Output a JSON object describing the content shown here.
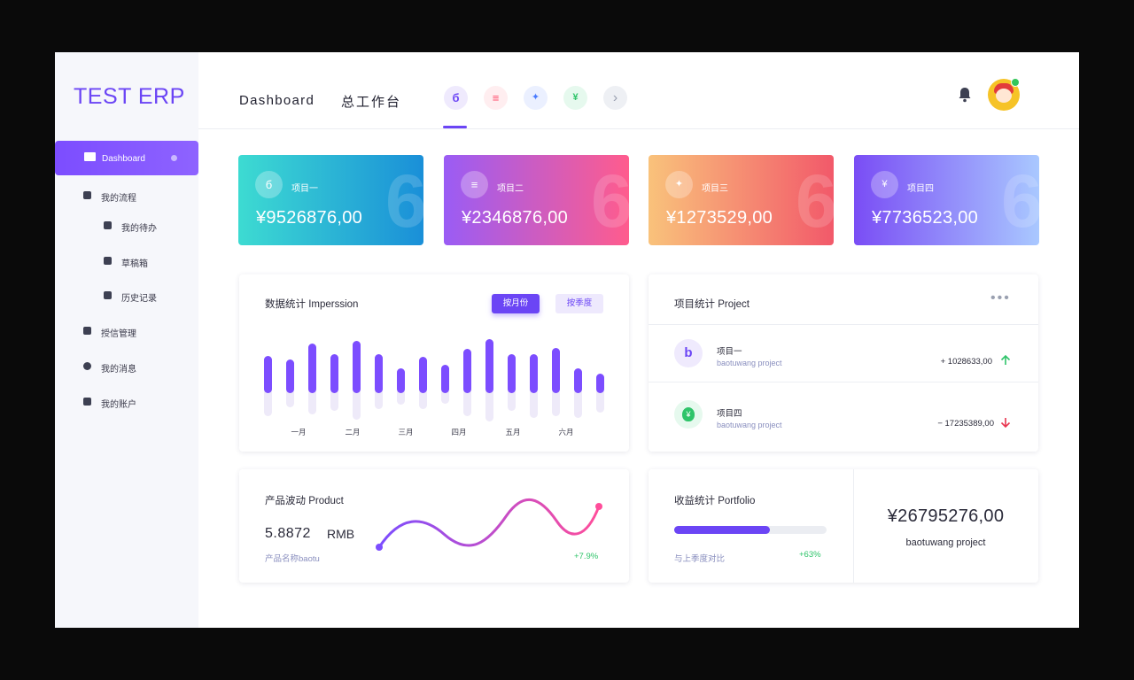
{
  "app": {
    "logo": "TEST ERP",
    "accent": "#6b45f5"
  },
  "sidebar": {
    "items": [
      {
        "label": "Dashboard",
        "icon": "monitor-icon",
        "active": true
      },
      {
        "label": "我的流程",
        "icon": "workflow-icon"
      },
      {
        "label": "我的待办",
        "icon": "calendar-icon",
        "sub": true
      },
      {
        "label": "草稿箱",
        "icon": "draft-icon",
        "sub": true
      },
      {
        "label": "历史记录",
        "icon": "history-icon",
        "sub": true
      },
      {
        "label": "授信管理",
        "icon": "credit-icon"
      },
      {
        "label": "我的消息",
        "icon": "message-icon"
      },
      {
        "label": "我的账户",
        "icon": "account-icon"
      }
    ]
  },
  "header": {
    "title_en": "Dashboard",
    "title_cn": "总工作台",
    "tabs": [
      {
        "icon": "logo-six-icon",
        "glyph": "б",
        "color": "#6b45f5",
        "bg": "#efeafd"
      },
      {
        "icon": "coins-icon",
        "glyph": "≡",
        "color": "#ff4d6d",
        "bg": "#ffeef0"
      },
      {
        "icon": "compass-icon",
        "glyph": "✦",
        "color": "#4a7bff",
        "bg": "#ebf0ff"
      },
      {
        "icon": "money-bag-icon",
        "glyph": "¥",
        "color": "#2fc46a",
        "bg": "#e6f9ee"
      },
      {
        "icon": "chevron-right-icon",
        "glyph": "›",
        "color": "#9aa0b0",
        "bg": "#eef0f4"
      }
    ]
  },
  "stats": [
    {
      "name": "项目一",
      "amount": "¥9526876,00",
      "icon": "logo-six-icon",
      "glyph": "б"
    },
    {
      "name": "项目二",
      "amount": "¥2346876,00",
      "icon": "coins-icon",
      "glyph": "≡"
    },
    {
      "name": "项目三",
      "amount": "¥1273529,00",
      "icon": "compass-icon",
      "glyph": "✦"
    },
    {
      "name": "项目四",
      "amount": "¥7736523,00",
      "icon": "money-bag-icon",
      "glyph": "¥"
    }
  ],
  "impression": {
    "title": "数据统计 Imperssion",
    "btn_month": "按月份",
    "btn_quarter": "按季度",
    "months": [
      "一月",
      "二月",
      "三月",
      "四月",
      "五月",
      "六月"
    ]
  },
  "project": {
    "title": "项目统计 Project",
    "items": [
      {
        "name": "项目一",
        "sub": "baotuwang project",
        "value": "+ 1028633,00",
        "trend": "up"
      },
      {
        "name": "项目四",
        "sub": "baotuwang project",
        "value": "− 17235389,00",
        "trend": "down"
      }
    ]
  },
  "product": {
    "title": "产品波动 Product",
    "value": "5.8872",
    "unit": "RMB",
    "sub": "产品名称baotu",
    "change": "+7.9%"
  },
  "portfolio": {
    "title": "收益统计 Portfolio",
    "progress": 0.63,
    "compare_label": "与上季度对比",
    "percent": "+63%",
    "total": "¥26795276,00",
    "total_sub": "baotuwang project"
  }
}
